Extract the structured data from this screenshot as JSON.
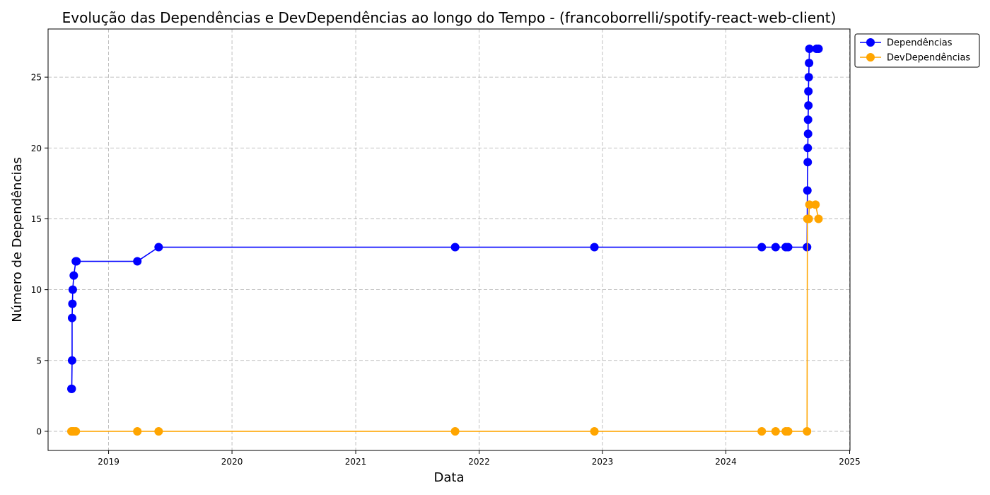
{
  "chart_data": {
    "type": "line",
    "title": "Evolução das Dependências e DevDependências ao longo do Tempo - (francoborrelli/spotify-react-web-client)",
    "xlabel": "Data",
    "ylabel": "Número de Dependências",
    "xlim": [
      "2018-07-06",
      "2025-01-02"
    ],
    "ylim": [
      -1.35,
      28.4
    ],
    "x_ticks": [
      "2019",
      "2020",
      "2021",
      "2022",
      "2023",
      "2024",
      "2025"
    ],
    "y_ticks": [
      0,
      5,
      10,
      15,
      20,
      25
    ],
    "grid": true,
    "legend_position": "top-right, outside",
    "series": [
      {
        "name": "Dependências",
        "color": "#0000ff",
        "marker": "circle",
        "points": [
          [
            "2018-09-13",
            3
          ],
          [
            "2018-09-14",
            3
          ],
          [
            "2018-09-15",
            5
          ],
          [
            "2018-09-15",
            8
          ],
          [
            "2018-09-16",
            9
          ],
          [
            "2018-09-17",
            10
          ],
          [
            "2018-09-20",
            11
          ],
          [
            "2018-09-26",
            12
          ],
          [
            "2018-09-28",
            12
          ],
          [
            "2019-03-27",
            12
          ],
          [
            "2019-05-29",
            13
          ],
          [
            "2021-10-22",
            13
          ],
          [
            "2022-12-08",
            13
          ],
          [
            "2024-04-16",
            13
          ],
          [
            "2024-05-27",
            13
          ],
          [
            "2024-06-26",
            13
          ],
          [
            "2024-07-03",
            13
          ],
          [
            "2024-08-28",
            13
          ],
          [
            "2024-08-29",
            17
          ],
          [
            "2024-08-30",
            19
          ],
          [
            "2024-08-30",
            20
          ],
          [
            "2024-08-31",
            21
          ],
          [
            "2024-08-31",
            22
          ],
          [
            "2024-09-01",
            23
          ],
          [
            "2024-09-01",
            24
          ],
          [
            "2024-09-02",
            25
          ],
          [
            "2024-09-03",
            26
          ],
          [
            "2024-09-04",
            27
          ],
          [
            "2024-09-25",
            27
          ],
          [
            "2024-10-01",
            27
          ]
        ]
      },
      {
        "name": "DevDependências",
        "color": "#ffa500",
        "marker": "circle",
        "points": [
          [
            "2018-09-13",
            0
          ],
          [
            "2018-09-16",
            0
          ],
          [
            "2018-09-20",
            0
          ],
          [
            "2018-09-26",
            0
          ],
          [
            "2019-03-27",
            0
          ],
          [
            "2019-05-29",
            0
          ],
          [
            "2021-10-22",
            0
          ],
          [
            "2022-12-08",
            0
          ],
          [
            "2024-04-16",
            0
          ],
          [
            "2024-05-27",
            0
          ],
          [
            "2024-06-26",
            0
          ],
          [
            "2024-07-03",
            0
          ],
          [
            "2024-08-28",
            0
          ],
          [
            "2024-08-29",
            15
          ],
          [
            "2024-09-02",
            15
          ],
          [
            "2024-09-04",
            16
          ],
          [
            "2024-09-22",
            16
          ],
          [
            "2024-10-01",
            15
          ]
        ]
      }
    ]
  }
}
